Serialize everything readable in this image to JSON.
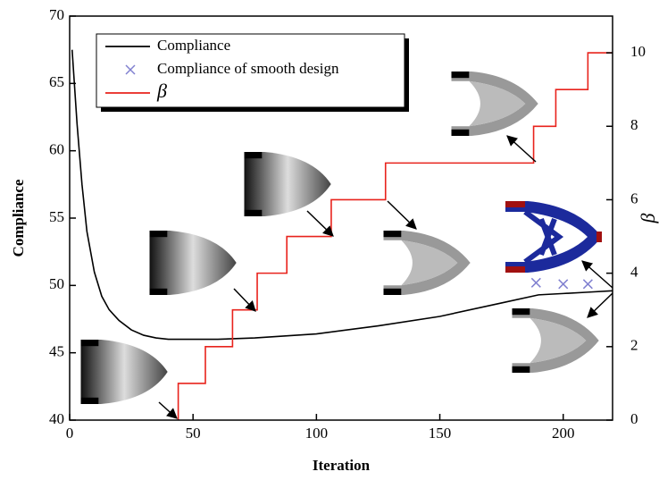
{
  "chart_data": {
    "type": "line",
    "xlabel": "Iteration",
    "ylabel": "Compliance",
    "y2label": "β",
    "xlim": [
      0,
      220
    ],
    "xticks": [
      0,
      50,
      100,
      150,
      200
    ],
    "ylim": [
      40,
      70
    ],
    "yticks": [
      40,
      45,
      50,
      55,
      60,
      65,
      70
    ],
    "y2lim": [
      0,
      11
    ],
    "y2ticks": [
      0,
      2,
      4,
      6,
      8,
      10
    ],
    "legend": "upper left",
    "series": [
      {
        "name": "Compliance",
        "color": "#000000",
        "marker": "none",
        "x": [
          1,
          3,
          5,
          7,
          10,
          13,
          16,
          20,
          25,
          30,
          35,
          40,
          50,
          60,
          75,
          100,
          125,
          150,
          175,
          190,
          200,
          210,
          220
        ],
        "values": [
          67.5,
          62,
          57.5,
          54,
          51,
          49.2,
          48.2,
          47.4,
          46.7,
          46.3,
          46.1,
          46.0,
          46.0,
          46.0,
          46.1,
          46.4,
          47.0,
          47.7,
          48.7,
          49.3,
          49.4,
          49.5,
          49.6
        ]
      },
      {
        "name": "Compliance of smooth design",
        "color": "#8080d0",
        "marker": "x",
        "x": [
          189,
          200,
          210
        ],
        "values": [
          50.2,
          50.1,
          50.1
        ]
      },
      {
        "name": "β",
        "color": "#e8231c",
        "marker": "none",
        "axis": "y2",
        "x": [
          44,
          44,
          55,
          55,
          66,
          66,
          76,
          76,
          88,
          88,
          106,
          106,
          128,
          128,
          188,
          188,
          197,
          197,
          210,
          210,
          220
        ],
        "values": [
          0,
          1,
          1,
          2,
          2,
          3,
          3,
          4,
          4,
          5,
          5,
          6,
          6,
          7,
          7,
          8,
          8,
          9,
          9,
          10,
          10
        ]
      }
    ]
  }
}
